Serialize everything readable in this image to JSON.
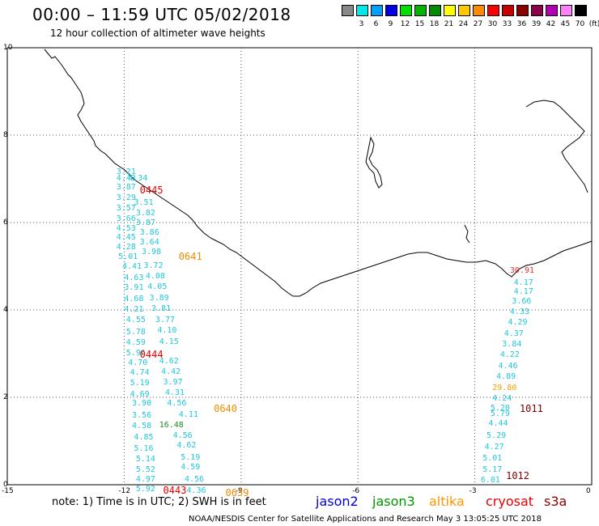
{
  "header": {
    "title": "00:00 – 11:59 UTC 05/02/2018",
    "subtitle": "12 hour collection of altimeter wave heights"
  },
  "colorbar": {
    "colors": [
      "#888888",
      "#00e8e8",
      "#00a0ff",
      "#0000e6",
      "#00e000",
      "#00b400",
      "#008c00",
      "#ffff00",
      "#ffc800",
      "#ff8c00",
      "#ff0000",
      "#c80000",
      "#8c0000",
      "#8c004c",
      "#b400b4",
      "#ff80ff",
      "#000000"
    ],
    "labels": [
      "3",
      "6",
      "9",
      "12",
      "15",
      "18",
      "21",
      "24",
      "27",
      "30",
      "33",
      "36",
      "39",
      "42",
      "45",
      "70",
      "(ft)"
    ]
  },
  "axes": {
    "x_ticks": [
      "-15",
      "-12",
      "-9",
      "-6",
      "-3",
      "0"
    ],
    "y_ticks": [
      "10",
      "8",
      "6",
      "4",
      "2",
      "0"
    ]
  },
  "observations": [
    {
      "lon": -12.2,
      "lat": 7.15,
      "value": "3.21",
      "color": "#1ec8dc"
    },
    {
      "lon": -12.2,
      "lat": 7.0,
      "value": "4.43",
      "color": "#1ec8dc"
    },
    {
      "lon": -11.9,
      "lat": 7.0,
      "value": "4.34",
      "color": "#1ec8dc"
    },
    {
      "lon": -12.2,
      "lat": 6.8,
      "value": "3.87",
      "color": "#1ec8dc"
    },
    {
      "lon": -12.2,
      "lat": 6.55,
      "value": "3.29",
      "color": "#1ec8dc"
    },
    {
      "lon": -11.75,
      "lat": 6.45,
      "value": "3.51",
      "color": "#1ec8dc"
    },
    {
      "lon": -12.2,
      "lat": 6.32,
      "value": "3.57",
      "color": "#1ec8dc"
    },
    {
      "lon": -11.7,
      "lat": 6.2,
      "value": "3.82",
      "color": "#1ec8dc"
    },
    {
      "lon": -12.2,
      "lat": 6.08,
      "value": "3.66",
      "color": "#1ec8dc"
    },
    {
      "lon": -11.7,
      "lat": 5.98,
      "value": "3.87",
      "color": "#1ec8dc"
    },
    {
      "lon": -12.2,
      "lat": 5.86,
      "value": "4.53",
      "color": "#1ec8dc"
    },
    {
      "lon": -11.6,
      "lat": 5.76,
      "value": "3.86",
      "color": "#1ec8dc"
    },
    {
      "lon": -12.2,
      "lat": 5.64,
      "value": "4.45",
      "color": "#1ec8dc"
    },
    {
      "lon": -11.6,
      "lat": 5.54,
      "value": "3.64",
      "color": "#1ec8dc"
    },
    {
      "lon": -12.2,
      "lat": 5.42,
      "value": "4.28",
      "color": "#1ec8dc"
    },
    {
      "lon": -11.55,
      "lat": 5.32,
      "value": "3.98",
      "color": "#1ec8dc"
    },
    {
      "lon": -12.15,
      "lat": 5.2,
      "value": "5.01",
      "color": "#1ec8dc"
    },
    {
      "lon": -11.5,
      "lat": 5.0,
      "value": "3.72",
      "color": "#1ec8dc"
    },
    {
      "lon": -12.05,
      "lat": 4.98,
      "value": "4.41",
      "color": "#1ec8dc"
    },
    {
      "lon": -11.45,
      "lat": 4.76,
      "value": "4.08",
      "color": "#1ec8dc"
    },
    {
      "lon": -12.0,
      "lat": 4.72,
      "value": "4.63",
      "color": "#1ec8dc"
    },
    {
      "lon": -11.4,
      "lat": 4.52,
      "value": "4.05",
      "color": "#1ec8dc"
    },
    {
      "lon": -12.0,
      "lat": 4.5,
      "value": "3.91",
      "color": "#1ec8dc"
    },
    {
      "lon": -11.35,
      "lat": 4.26,
      "value": "3.89",
      "color": "#1ec8dc"
    },
    {
      "lon": -12.0,
      "lat": 4.24,
      "value": "4.68",
      "color": "#1ec8dc"
    },
    {
      "lon": -11.3,
      "lat": 4.02,
      "value": "3.81",
      "color": "#1ec8dc"
    },
    {
      "lon": -12.0,
      "lat": 4.0,
      "value": "4.21",
      "color": "#1ec8dc"
    },
    {
      "lon": -11.2,
      "lat": 3.76,
      "value": "3.77",
      "color": "#1ec8dc"
    },
    {
      "lon": -11.95,
      "lat": 3.76,
      "value": "4.55",
      "color": "#1ec8dc"
    },
    {
      "lon": -11.15,
      "lat": 3.52,
      "value": "4.10",
      "color": "#1ec8dc"
    },
    {
      "lon": -11.95,
      "lat": 3.48,
      "value": "5.78",
      "color": "#1ec8dc"
    },
    {
      "lon": -11.1,
      "lat": 3.26,
      "value": "4.15",
      "color": "#1ec8dc"
    },
    {
      "lon": -11.95,
      "lat": 3.24,
      "value": "4.59",
      "color": "#1ec8dc"
    },
    {
      "lon": -11.95,
      "lat": 3.0,
      "value": "5.96",
      "color": "#1ec8dc"
    },
    {
      "lon": -11.1,
      "lat": 2.82,
      "value": "4.62",
      "color": "#1ec8dc"
    },
    {
      "lon": -11.9,
      "lat": 2.78,
      "value": "4.70",
      "color": "#1ec8dc"
    },
    {
      "lon": -11.05,
      "lat": 2.58,
      "value": "4.42",
      "color": "#1ec8dc"
    },
    {
      "lon": -11.85,
      "lat": 2.56,
      "value": "4.74",
      "color": "#1ec8dc"
    },
    {
      "lon": -11.0,
      "lat": 2.34,
      "value": "3.97",
      "color": "#1ec8dc"
    },
    {
      "lon": -11.85,
      "lat": 2.32,
      "value": "5.19",
      "color": "#1ec8dc"
    },
    {
      "lon": -10.95,
      "lat": 2.1,
      "value": "4.31",
      "color": "#1ec8dc"
    },
    {
      "lon": -11.85,
      "lat": 2.06,
      "value": "4.69",
      "color": "#1ec8dc"
    },
    {
      "lon": -10.9,
      "lat": 1.86,
      "value": "4.56",
      "color": "#1ec8dc"
    },
    {
      "lon": -11.8,
      "lat": 1.86,
      "value": "3.90",
      "color": "#1ec8dc"
    },
    {
      "lon": -10.6,
      "lat": 1.6,
      "value": "4.11",
      "color": "#1ec8dc"
    },
    {
      "lon": -11.8,
      "lat": 1.58,
      "value": "3.56",
      "color": "#1ec8dc"
    },
    {
      "lon": -11.1,
      "lat": 1.36,
      "value": "16.48",
      "color": "#1e8c1e"
    },
    {
      "lon": -11.8,
      "lat": 1.34,
      "value": "4.58",
      "color": "#1ec8dc"
    },
    {
      "lon": -10.75,
      "lat": 1.12,
      "value": "4.56",
      "color": "#1ec8dc"
    },
    {
      "lon": -11.75,
      "lat": 1.08,
      "value": "4.85",
      "color": "#1ec8dc"
    },
    {
      "lon": -10.65,
      "lat": 0.88,
      "value": "4.62",
      "color": "#1ec8dc"
    },
    {
      "lon": -11.75,
      "lat": 0.82,
      "value": "5.16",
      "color": "#1ec8dc"
    },
    {
      "lon": -10.55,
      "lat": 0.62,
      "value": "5.19",
      "color": "#1ec8dc"
    },
    {
      "lon": -11.7,
      "lat": 0.58,
      "value": "5.14",
      "color": "#1ec8dc"
    },
    {
      "lon": -10.55,
      "lat": 0.38,
      "value": "4.59",
      "color": "#1ec8dc"
    },
    {
      "lon": -11.7,
      "lat": 0.34,
      "value": "5.52",
      "color": "#1ec8dc"
    },
    {
      "lon": -10.45,
      "lat": 0.12,
      "value": "4.56",
      "color": "#1ec8dc"
    },
    {
      "lon": -11.7,
      "lat": 0.12,
      "value": "4.97",
      "color": "#1ec8dc"
    },
    {
      "lon": -11.7,
      "lat": -0.12,
      "value": "5.92",
      "color": "#1ec8dc"
    },
    {
      "lon": -10.4,
      "lat": -0.14,
      "value": "4.36",
      "color": "#1ec8dc"
    },
    {
      "lon": -2.1,
      "lat": 4.88,
      "value": "30.91",
      "color": "#e63232"
    },
    {
      "lon": -2.0,
      "lat": 4.62,
      "value": "4.17",
      "color": "#1ec8dc"
    },
    {
      "lon": -2.0,
      "lat": 4.4,
      "value": "4.17",
      "color": "#1ec8dc"
    },
    {
      "lon": -2.05,
      "lat": 4.18,
      "value": "3.66",
      "color": "#1ec8dc"
    },
    {
      "lon": -2.1,
      "lat": 3.94,
      "value": "4.33",
      "color": "#1ec8dc"
    },
    {
      "lon": -2.15,
      "lat": 3.7,
      "value": "4.29",
      "color": "#1ec8dc"
    },
    {
      "lon": -2.25,
      "lat": 3.44,
      "value": "4.37",
      "color": "#1ec8dc"
    },
    {
      "lon": -2.3,
      "lat": 3.2,
      "value": "3.84",
      "color": "#1ec8dc"
    },
    {
      "lon": -2.35,
      "lat": 2.96,
      "value": "4.22",
      "color": "#1ec8dc"
    },
    {
      "lon": -2.4,
      "lat": 2.7,
      "value": "4.46",
      "color": "#1ec8dc"
    },
    {
      "lon": -2.45,
      "lat": 2.46,
      "value": "4.89",
      "color": "#1ec8dc"
    },
    {
      "lon": -2.55,
      "lat": 2.2,
      "value": "29.80",
      "color": "#f5a000"
    },
    {
      "lon": -2.55,
      "lat": 1.96,
      "value": "4.24",
      "color": "#1ec8dc"
    },
    {
      "lon": -2.6,
      "lat": 1.74,
      "value": "5.20",
      "color": "#1ec8dc"
    },
    {
      "lon": -2.6,
      "lat": 1.62,
      "value": "5.79",
      "color": "#1ec8dc"
    },
    {
      "lon": -2.65,
      "lat": 1.38,
      "value": "4.44",
      "color": "#1ec8dc"
    },
    {
      "lon": -2.7,
      "lat": 1.12,
      "value": "5.29",
      "color": "#1ec8dc"
    },
    {
      "lon": -2.75,
      "lat": 0.86,
      "value": "4.27",
      "color": "#1ec8dc"
    },
    {
      "lon": -2.8,
      "lat": 0.6,
      "value": "5.01",
      "color": "#1ec8dc"
    },
    {
      "lon": -2.8,
      "lat": 0.34,
      "value": "5.17",
      "color": "#1ec8dc"
    },
    {
      "lon": -2.85,
      "lat": 0.1,
      "value": "6.01",
      "color": "#1ec8dc"
    }
  ],
  "passes": [
    {
      "lon": -11.6,
      "lat": 6.75,
      "label": "0445",
      "color": "#e60000"
    },
    {
      "lon": -10.6,
      "lat": 5.22,
      "label": "0641",
      "color": "#f08c00"
    },
    {
      "lon": -11.6,
      "lat": 2.98,
      "label": "0444",
      "color": "#e60000"
    },
    {
      "lon": -9.7,
      "lat": 1.75,
      "label": "0640",
      "color": "#f08c00"
    },
    {
      "lon": -11.0,
      "lat": -0.13,
      "label": "0443",
      "color": "#e60000"
    },
    {
      "lon": -9.4,
      "lat": -0.18,
      "label": "0639",
      "color": "#f08c00"
    },
    {
      "lon": -1.85,
      "lat": 1.75,
      "label": "1011",
      "color": "#780000"
    },
    {
      "lon": -2.2,
      "lat": 0.2,
      "label": "1012",
      "color": "#780000"
    }
  ],
  "footer": {
    "note": "note: 1) Time is in UTC; 2) SWH is in feet",
    "satellites": [
      {
        "name": "jason2",
        "color": "#0000dc"
      },
      {
        "name": "jason3",
        "color": "#009600"
      },
      {
        "name": "altika",
        "color": "#ff9600"
      },
      {
        "name": "cryosat",
        "color": "#e60000"
      },
      {
        "name": "s3a",
        "color": "#8c0000"
      }
    ],
    "credit": "NOAA/NESDIS Center for Satellite Applications and Research   May  3 13:05:25 UTC 2018"
  }
}
